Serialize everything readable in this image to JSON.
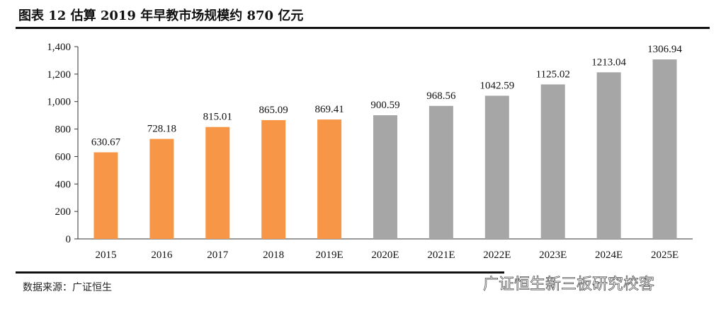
{
  "title": "图表 12 估算 2019 年早教市场规模约 870 亿元",
  "source": "数据来源：广证恒生",
  "watermark": "广证恒生新三板研究校客",
  "chart_data": {
    "type": "bar",
    "categories": [
      "2015",
      "2016",
      "2017",
      "2018",
      "2019E",
      "2020E",
      "2021E",
      "2022E",
      "2023E",
      "2024E",
      "2025E"
    ],
    "values": [
      630.67,
      728.18,
      815.01,
      865.09,
      869.41,
      900.59,
      968.56,
      1042.59,
      1125.02,
      1213.04,
      1306.94
    ],
    "labels": [
      "630.67",
      "728.18",
      "815.01",
      "865.09",
      "869.41",
      "900.59",
      "968.56",
      "1042.59",
      "1125.02",
      "1213.04",
      "1306.94"
    ],
    "bar_colors": [
      "#F79646",
      "#F79646",
      "#F79646",
      "#F79646",
      "#F79646",
      "#A6A6A6",
      "#A6A6A6",
      "#A6A6A6",
      "#A6A6A6",
      "#A6A6A6",
      "#A6A6A6"
    ],
    "ylim": [
      0,
      1400
    ],
    "yticks": [
      "0",
      "200",
      "400",
      "600",
      "800",
      "1,000",
      "1,200",
      "1,400"
    ],
    "grid": false,
    "legend": "none"
  }
}
